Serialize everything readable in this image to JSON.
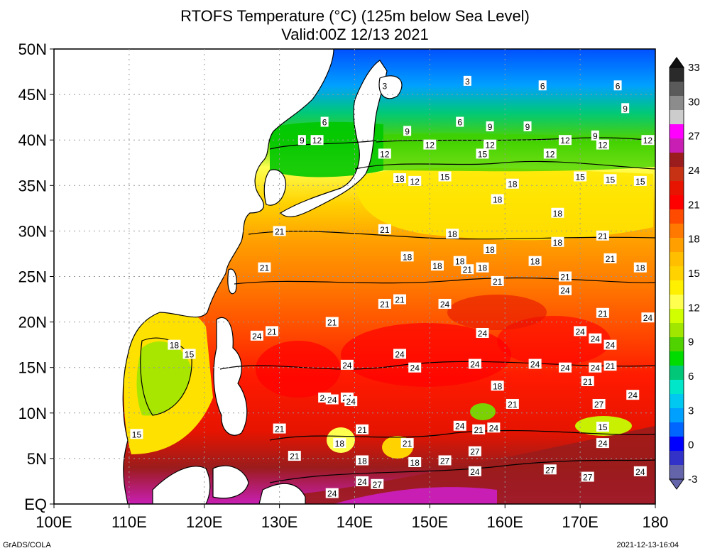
{
  "title": "RTOFS Temperature (°C) (125m below Sea Level)",
  "subtitle": "Valid:00Z 12/13 2021",
  "lat_labels": [
    "50N",
    "45N",
    "40N",
    "35N",
    "30N",
    "25N",
    "20N",
    "15N",
    "10N",
    "5N",
    "EQ"
  ],
  "lon_labels": [
    "100E",
    "110E",
    "120E",
    "130E",
    "140E",
    "150E",
    "160E",
    "170E",
    "180"
  ],
  "colorbar": {
    "labels": [
      "33",
      "30",
      "27",
      "24",
      "21",
      "18",
      "15",
      "12",
      "9",
      "6",
      "3",
      "0",
      "-3"
    ],
    "colors": [
      "#2a2a2a",
      "#5a5a5a",
      "#8c8c8c",
      "#cccccc",
      "#ff00ff",
      "#c81eb4",
      "#9b1c1c",
      "#c83214",
      "#e61400",
      "#ff0000",
      "#ff4b00",
      "#ff7800",
      "#ffa000",
      "#ffbe00",
      "#ffd200",
      "#fff000",
      "#ffff50",
      "#d2ff00",
      "#a0e600",
      "#50d200",
      "#00dc00",
      "#00c878",
      "#00e6c8",
      "#00c8f0",
      "#00a0ff",
      "#0064ff",
      "#0000ff",
      "#3232c8",
      "#6464aa"
    ]
  },
  "contour_labels": [
    {
      "v": "3",
      "lon": 144,
      "lat": 46
    },
    {
      "v": "3",
      "lon": 155,
      "lat": 46.5
    },
    {
      "v": "6",
      "lon": 165,
      "lat": 46
    },
    {
      "v": "6",
      "lon": 175,
      "lat": 46
    },
    {
      "v": "6",
      "lon": 136,
      "lat": 42
    },
    {
      "v": "6",
      "lon": 154,
      "lat": 42
    },
    {
      "v": "9",
      "lon": 133,
      "lat": 40
    },
    {
      "v": "12",
      "lon": 135,
      "lat": 40
    },
    {
      "v": "9",
      "lon": 147,
      "lat": 41
    },
    {
      "v": "9",
      "lon": 158,
      "lat": 41.5
    },
    {
      "v": "9",
      "lon": 163,
      "lat": 41.5
    },
    {
      "v": "9",
      "lon": 176,
      "lat": 43.5
    },
    {
      "v": "9",
      "lon": 172,
      "lat": 40.5
    },
    {
      "v": "12",
      "lon": 168,
      "lat": 40
    },
    {
      "v": "12",
      "lon": 173,
      "lat": 39.5
    },
    {
      "v": "12",
      "lon": 179,
      "lat": 40
    },
    {
      "v": "12",
      "lon": 144,
      "lat": 38.5
    },
    {
      "v": "12",
      "lon": 150,
      "lat": 39.5
    },
    {
      "v": "12",
      "lon": 158,
      "lat": 39.5
    },
    {
      "v": "15",
      "lon": 157,
      "lat": 38.5
    },
    {
      "v": "12",
      "lon": 166,
      "lat": 38.5
    },
    {
      "v": "15",
      "lon": 152,
      "lat": 36
    },
    {
      "v": "12",
      "lon": 148,
      "lat": 35.5
    },
    {
      "v": "18",
      "lon": 146,
      "lat": 35.8
    },
    {
      "v": "18",
      "lon": 161,
      "lat": 35.2
    },
    {
      "v": "15",
      "lon": 170,
      "lat": 36
    },
    {
      "v": "15",
      "lon": 174,
      "lat": 35.7
    },
    {
      "v": "15",
      "lon": 178,
      "lat": 35.5
    },
    {
      "v": "18",
      "lon": 159,
      "lat": 33.5
    },
    {
      "v": "18",
      "lon": 167,
      "lat": 32
    },
    {
      "v": "21",
      "lon": 130,
      "lat": 30
    },
    {
      "v": "21",
      "lon": 144,
      "lat": 30.2
    },
    {
      "v": "18",
      "lon": 153,
      "lat": 29.7
    },
    {
      "v": "18",
      "lon": 158,
      "lat": 28
    },
    {
      "v": "18",
      "lon": 167,
      "lat": 28.8
    },
    {
      "v": "21",
      "lon": 173,
      "lat": 29.5
    },
    {
      "v": "18",
      "lon": 147,
      "lat": 27.2
    },
    {
      "v": "18",
      "lon": 151,
      "lat": 26.2
    },
    {
      "v": "18",
      "lon": 154,
      "lat": 26.7
    },
    {
      "v": "21",
      "lon": 155,
      "lat": 25.8
    },
    {
      "v": "18",
      "lon": 157,
      "lat": 26
    },
    {
      "v": "18",
      "lon": 164,
      "lat": 26.7
    },
    {
      "v": "21",
      "lon": 174,
      "lat": 27
    },
    {
      "v": "18",
      "lon": 178,
      "lat": 26
    },
    {
      "v": "21",
      "lon": 128,
      "lat": 26
    },
    {
      "v": "21",
      "lon": 168,
      "lat": 25
    },
    {
      "v": "21",
      "lon": 159,
      "lat": 24.5
    },
    {
      "v": "24",
      "lon": 168,
      "lat": 23.5
    },
    {
      "v": "21",
      "lon": 144,
      "lat": 22
    },
    {
      "v": "21",
      "lon": 146,
      "lat": 22.5
    },
    {
      "v": "24",
      "lon": 152,
      "lat": 22
    },
    {
      "v": "21",
      "lon": 173,
      "lat": 21
    },
    {
      "v": "24",
      "lon": 179,
      "lat": 20.5
    },
    {
      "v": "21",
      "lon": 137,
      "lat": 20
    },
    {
      "v": "21",
      "lon": 129,
      "lat": 19
    },
    {
      "v": "24",
      "lon": 127,
      "lat": 18.5
    },
    {
      "v": "24",
      "lon": 157,
      "lat": 18.8
    },
    {
      "v": "24",
      "lon": 170,
      "lat": 19
    },
    {
      "v": "24",
      "lon": 172,
      "lat": 18.2
    },
    {
      "v": "24",
      "lon": 174,
      "lat": 17.5
    },
    {
      "v": "18",
      "lon": 116,
      "lat": 17.5
    },
    {
      "v": "15",
      "lon": 118,
      "lat": 16.5
    },
    {
      "v": "24",
      "lon": 146,
      "lat": 16.5
    },
    {
      "v": "24",
      "lon": 139,
      "lat": 15.3
    },
    {
      "v": "24",
      "lon": 148,
      "lat": 15
    },
    {
      "v": "24",
      "lon": 156,
      "lat": 15.4
    },
    {
      "v": "24",
      "lon": 164,
      "lat": 15.4
    },
    {
      "v": "24",
      "lon": 168,
      "lat": 15
    },
    {
      "v": "24",
      "lon": 172,
      "lat": 15
    },
    {
      "v": "21",
      "lon": 174,
      "lat": 15.2
    },
    {
      "v": "21",
      "lon": 171,
      "lat": 13.5
    },
    {
      "v": "18",
      "lon": 159,
      "lat": 13
    },
    {
      "v": "24",
      "lon": 177,
      "lat": 12
    },
    {
      "v": "24",
      "lon": 136,
      "lat": 11.7
    },
    {
      "v": "24",
      "lon": 139,
      "lat": 11.7
    },
    {
      "v": "24",
      "lon": 137,
      "lat": 11.5
    },
    {
      "v": "24",
      "lon": 139.5,
      "lat": 11.3
    },
    {
      "v": "21",
      "lon": 161,
      "lat": 11
    },
    {
      "v": "27",
      "lon": 172.5,
      "lat": 11
    },
    {
      "v": "15",
      "lon": 173,
      "lat": 8.5
    },
    {
      "v": "24",
      "lon": 154,
      "lat": 8.6
    },
    {
      "v": "21",
      "lon": 156.5,
      "lat": 8.2
    },
    {
      "v": "24",
      "lon": 158.5,
      "lat": 8.4
    },
    {
      "v": "21",
      "lon": 141,
      "lat": 8.2
    },
    {
      "v": "21",
      "lon": 130,
      "lat": 8.3
    },
    {
      "v": "15",
      "lon": 111,
      "lat": 7.7
    },
    {
      "v": "18",
      "lon": 138,
      "lat": 6.7
    },
    {
      "v": "21",
      "lon": 147,
      "lat": 6.7
    },
    {
      "v": "24",
      "lon": 173,
      "lat": 6.7
    },
    {
      "v": "27",
      "lon": 156,
      "lat": 5.8
    },
    {
      "v": "21",
      "lon": 132,
      "lat": 5.3
    },
    {
      "v": "18",
      "lon": 141,
      "lat": 4.8
    },
    {
      "v": "18",
      "lon": 148,
      "lat": 4.6
    },
    {
      "v": "27",
      "lon": 152,
      "lat": 4.8
    },
    {
      "v": "24",
      "lon": 156,
      "lat": 3.6
    },
    {
      "v": "27",
      "lon": 166,
      "lat": 3.8
    },
    {
      "v": "27",
      "lon": 171,
      "lat": 3
    },
    {
      "v": "24",
      "lon": 178,
      "lat": 3.6
    },
    {
      "v": "24",
      "lon": 141,
      "lat": 2.5
    },
    {
      "v": "27",
      "lon": 143,
      "lat": 2.2
    },
    {
      "v": "24",
      "lon": 137,
      "lat": 1.2
    }
  ],
  "footer_left": "GrADS/COLA",
  "footer_right": "2021-12-13-16:04"
}
